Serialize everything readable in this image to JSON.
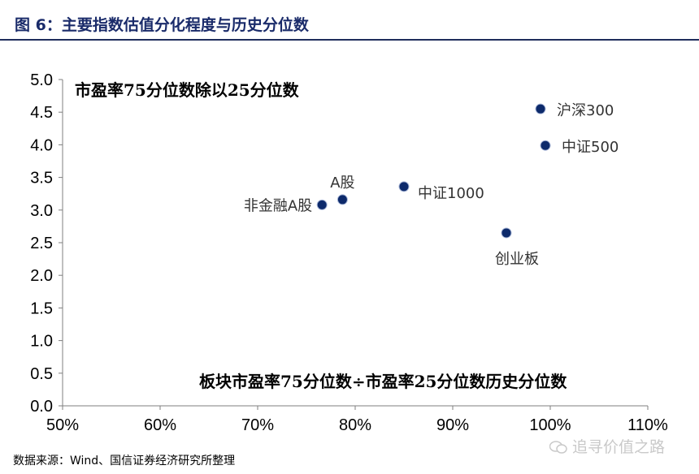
{
  "figure": {
    "title": "图 6：主要指数估值分化程度与历史分位数",
    "source": "数据来源：Wind、国信证券经济研究所整理",
    "watermark": "追寻价值之路"
  },
  "colors": {
    "marker": "#0d2a6b",
    "axis": "#7f7f7f",
    "title": "#1a2b6a"
  },
  "chart_data": {
    "type": "scatter",
    "title": "",
    "ylabel_annotation": "市盈率75分位数除以25分位数",
    "xlabel_annotation": "板块市盈率75分位数÷市盈率25分位数历史分位数",
    "xlim": [
      0.5,
      1.1
    ],
    "ylim": [
      0,
      5
    ],
    "x_ticks": [
      {
        "value": 0.5,
        "label": "50%"
      },
      {
        "value": 0.6,
        "label": "60%"
      },
      {
        "value": 0.7,
        "label": "70%"
      },
      {
        "value": 0.8,
        "label": "80%"
      },
      {
        "value": 0.9,
        "label": "90%"
      },
      {
        "value": 1.0,
        "label": "100%"
      },
      {
        "value": 1.1,
        "label": "110%"
      }
    ],
    "y_ticks": [
      {
        "value": 0,
        "label": "0.0"
      },
      {
        "value": 0.5,
        "label": "0.5"
      },
      {
        "value": 1,
        "label": "1.0"
      },
      {
        "value": 1.5,
        "label": "1.5"
      },
      {
        "value": 2,
        "label": "2.0"
      },
      {
        "value": 2.5,
        "label": "2.5"
      },
      {
        "value": 3,
        "label": "3.0"
      },
      {
        "value": 3.5,
        "label": "3.5"
      },
      {
        "value": 4,
        "label": "4.0"
      },
      {
        "value": 4.5,
        "label": "4.5"
      },
      {
        "value": 5,
        "label": "5.0"
      }
    ],
    "points": [
      {
        "name": "沪深300",
        "x": 0.99,
        "y": 4.55,
        "label_side": "right"
      },
      {
        "name": "中证500",
        "x": 0.995,
        "y": 3.99,
        "label_side": "right"
      },
      {
        "name": "A股",
        "x": 0.787,
        "y": 3.16,
        "label_side": "above"
      },
      {
        "name": "非金融A股",
        "x": 0.766,
        "y": 3.08,
        "label_side": "left"
      },
      {
        "name": "中证1000",
        "x": 0.85,
        "y": 3.36,
        "label_side": "below-right"
      },
      {
        "name": "创业板",
        "x": 0.955,
        "y": 2.65,
        "label_side": "below"
      }
    ]
  }
}
